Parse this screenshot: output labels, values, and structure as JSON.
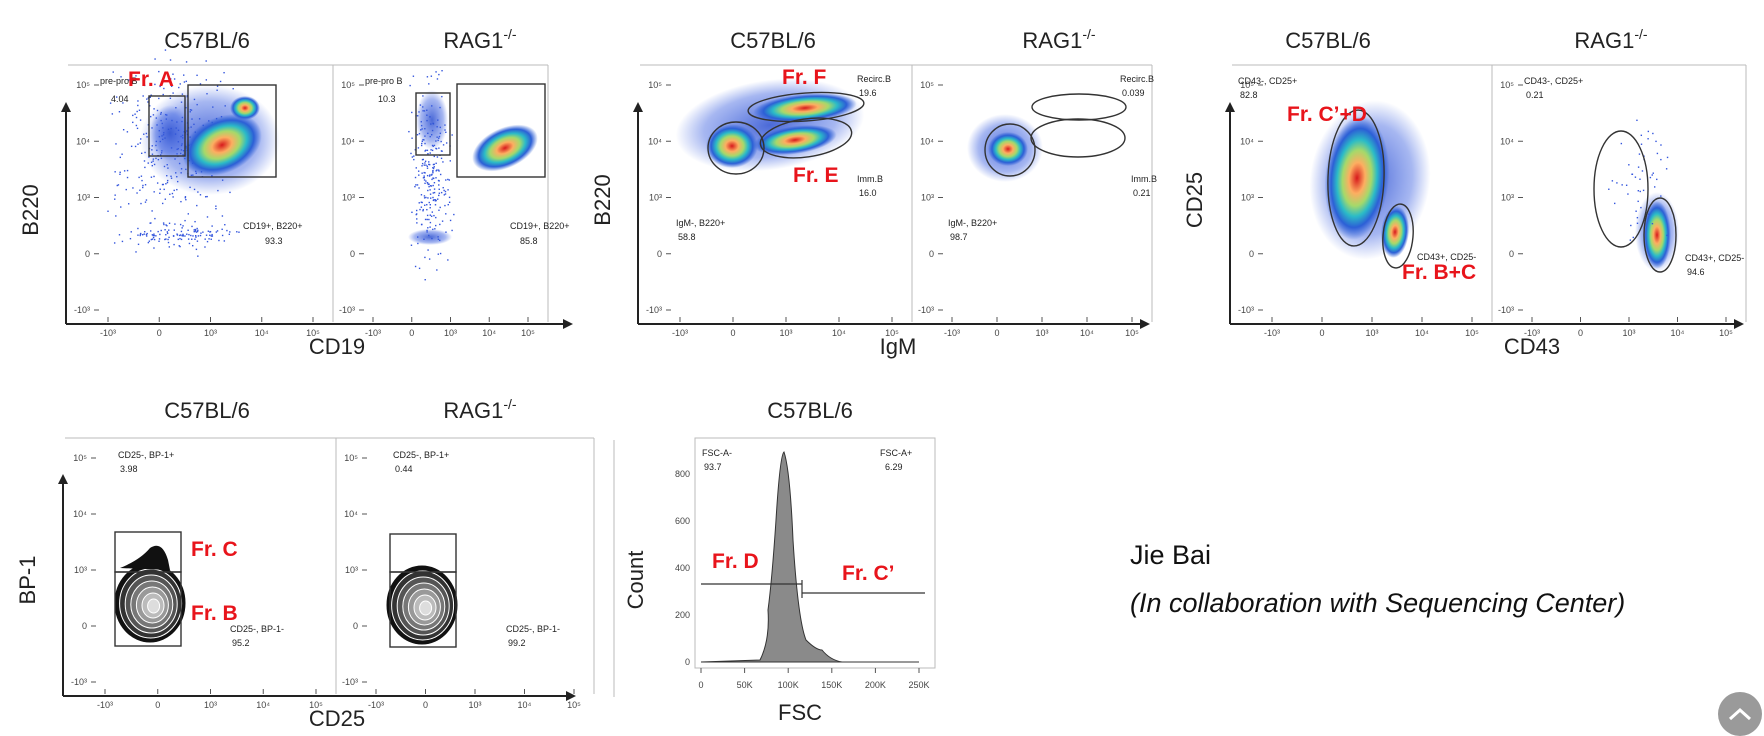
{
  "colors": {
    "gate_label": "#e8141b",
    "gate_line": "#333333",
    "axis": "#222222"
  },
  "chart_data": [
    {
      "type": "scatter",
      "xlabel": "CD19",
      "ylabel": "B220",
      "panels": [
        {
          "title": "C57BL/6",
          "gates": [
            {
              "name": "pre-pro B",
              "percent": "4.04"
            },
            {
              "name": "CD19+, B220+",
              "percent": "93.3"
            }
          ],
          "annotations": [
            "Fr. A"
          ]
        },
        {
          "title": "RAG1-/-",
          "gates": [
            {
              "name": "pre-pro B",
              "percent": "10.3"
            },
            {
              "name": "CD19+, B220+",
              "percent": "85.8"
            }
          ],
          "annotations": []
        }
      ]
    },
    {
      "type": "scatter",
      "xlabel": "IgM",
      "ylabel": "B220",
      "panels": [
        {
          "title": "C57BL/6",
          "gates": [
            {
              "name": "Recirc.B",
              "percent": "19.6"
            },
            {
              "name": "Imm.B",
              "percent": "16.0"
            },
            {
              "name": "IgM-, B220+",
              "percent": "58.8"
            }
          ],
          "annotations": [
            "Fr. F",
            "Fr. E"
          ]
        },
        {
          "title": "RAG1-/-",
          "gates": [
            {
              "name": "Recirc.B",
              "percent": "0.039"
            },
            {
              "name": "Imm.B",
              "percent": "0.21"
            },
            {
              "name": "IgM-, B220+",
              "percent": "98.7"
            }
          ],
          "annotations": []
        }
      ]
    },
    {
      "type": "scatter",
      "xlabel": "CD43",
      "ylabel": "CD25",
      "panels": [
        {
          "title": "C57BL/6",
          "gates": [
            {
              "name": "CD43-, CD25+",
              "percent": "82.8"
            },
            {
              "name": "CD43+, CD25-",
              "percent": ""
            }
          ],
          "annotations": [
            "Fr. C’+D",
            "Fr. B+C"
          ]
        },
        {
          "title": "RAG1-/-",
          "gates": [
            {
              "name": "CD43-, CD25+",
              "percent": "0.21"
            },
            {
              "name": "CD43+, CD25-",
              "percent": "94.6"
            }
          ],
          "annotations": []
        }
      ]
    },
    {
      "type": "scatter",
      "xlabel": "CD25",
      "ylabel": "BP-1",
      "panels": [
        {
          "title": "C57BL/6",
          "gates": [
            {
              "name": "CD25-, BP-1+",
              "percent": "3.98"
            },
            {
              "name": "CD25-, BP-1-",
              "percent": "95.2"
            }
          ],
          "annotations": [
            "Fr. C",
            "Fr. B"
          ]
        },
        {
          "title": "RAG1-/-",
          "gates": [
            {
              "name": "CD25-, BP-1+",
              "percent": "0.44"
            },
            {
              "name": "CD25-, BP-1-",
              "percent": "99.2"
            }
          ],
          "annotations": []
        }
      ]
    },
    {
      "type": "histogram",
      "title": "C57BL/6",
      "xlabel": "FSC",
      "ylabel": "Count",
      "x_ticks": [
        "0",
        "50K",
        "100K",
        "150K",
        "200K",
        "250K"
      ],
      "y_ticks": [
        "0",
        "200",
        "400",
        "600",
        "800"
      ],
      "gates": [
        {
          "name": "FSC-A-",
          "percent": "93.7"
        },
        {
          "name": "FSC-A+",
          "percent": "6.29"
        }
      ],
      "annotations": [
        "Fr. D",
        "Fr. C’"
      ]
    }
  ],
  "log_ticks": {
    "x": [
      "-10³",
      "0",
      "10³",
      "10⁴",
      "10⁵"
    ],
    "y": [
      "10⁵",
      "10⁴",
      "10³",
      "0",
      "-10³"
    ]
  },
  "credit": {
    "author": "Jie Bai",
    "collaboration": "(In collaboration with Sequencing Center)"
  }
}
